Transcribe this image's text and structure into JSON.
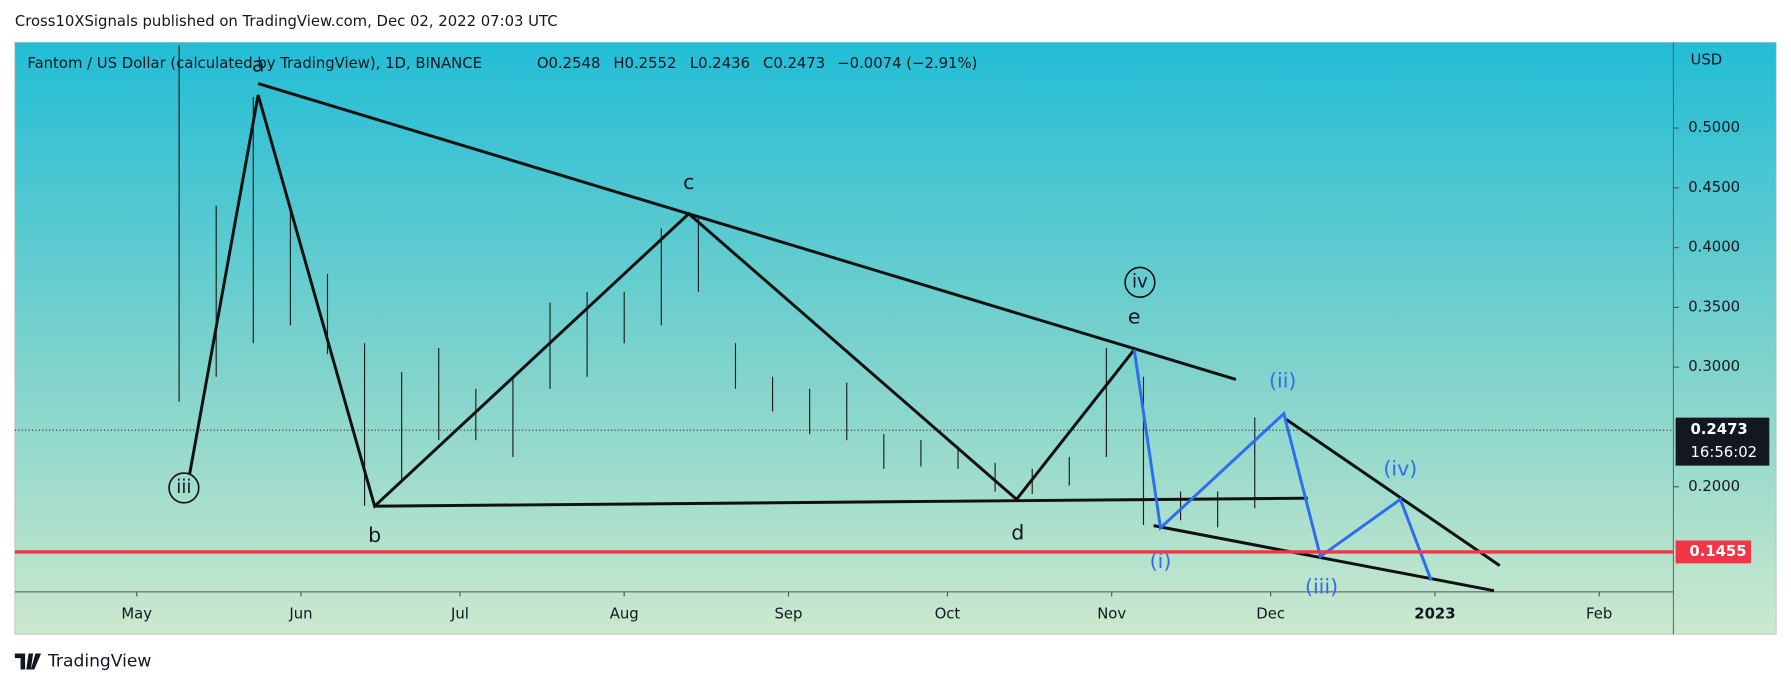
{
  "header": {
    "publisher": "Cross10XSignals published on TradingView.com, Dec 02, 2022 07:03 UTC"
  },
  "footer": {
    "logo": "TradingView"
  },
  "chart_data": {
    "type": "range",
    "title": "Fantom / US Dollar (calculated by TradingView), 1D, BINANCE",
    "ohlc": {
      "open": "O0.2548",
      "high": "H0.2552",
      "low": "L0.2436",
      "close": "C0.2473",
      "change": "−0.0074 (−2.91%)"
    },
    "currency": "USD",
    "x": [
      "2022-05-09",
      "2022-05-16",
      "2022-05-23",
      "2022-05-30",
      "2022-06-06",
      "2022-06-13",
      "2022-06-20",
      "2022-06-27",
      "2022-07-04",
      "2022-07-11",
      "2022-07-18",
      "2022-07-25",
      "2022-08-01",
      "2022-08-08",
      "2022-08-15",
      "2022-08-22",
      "2022-08-29",
      "2022-09-05",
      "2022-09-12",
      "2022-09-19",
      "2022-09-26",
      "2022-10-03",
      "2022-10-10",
      "2022-10-17",
      "2022-10-24",
      "2022-10-31",
      "2022-11-07",
      "2022-11-14",
      "2022-11-21",
      "2022-11-28"
    ],
    "high": [
      0.569,
      0.435,
      0.526,
      0.43,
      0.378,
      0.32,
      0.296,
      0.316,
      0.282,
      0.292,
      0.354,
      0.363,
      0.363,
      0.416,
      0.425,
      0.32,
      0.292,
      0.282,
      0.287,
      0.244,
      0.239,
      0.234,
      0.22,
      0.215,
      0.225,
      0.316,
      0.292,
      0.196,
      0.196,
      0.258
    ],
    "low": [
      0.271,
      0.292,
      0.32,
      0.335,
      0.311,
      0.184,
      0.206,
      0.239,
      0.239,
      0.225,
      0.282,
      0.292,
      0.32,
      0.335,
      0.363,
      0.282,
      0.263,
      0.244,
      0.239,
      0.215,
      0.217,
      0.215,
      0.196,
      0.194,
      0.201,
      0.225,
      0.168,
      0.172,
      0.166,
      0.182
    ],
    "color": "#1b1b1b",
    "xlim": [
      "2022-04-08",
      "2023-02-15"
    ],
    "xticks": [
      {
        "value": "2022-05-01",
        "label": "May"
      },
      {
        "value": "2022-06-01",
        "label": "Jun"
      },
      {
        "value": "2022-07-01",
        "label": "Jul"
      },
      {
        "value": "2022-08-01",
        "label": "Aug"
      },
      {
        "value": "2022-09-01",
        "label": "Sep"
      },
      {
        "value": "2022-10-01",
        "label": "Oct"
      },
      {
        "value": "2022-11-01",
        "label": "Nov"
      },
      {
        "value": "2022-12-01",
        "label": "Dec"
      },
      {
        "value": "2023-01-01",
        "label": "2023"
      },
      {
        "value": "2023-02-01",
        "label": "Feb"
      }
    ],
    "ylim": [
      0.1121,
      0.5716
    ],
    "yticks": [
      {
        "value": 0.2,
        "label": "0.2000"
      },
      {
        "value": 0.3,
        "label": "0.3000"
      },
      {
        "value": 0.35,
        "label": "0.3500"
      },
      {
        "value": 0.4,
        "label": "0.4000"
      },
      {
        "value": 0.45,
        "label": "0.4500"
      },
      {
        "value": 0.5,
        "label": "0.5000"
      }
    ],
    "last_price": {
      "value": 0.2473,
      "label": "0.2473",
      "countdown": "16:56:02"
    },
    "support": {
      "value": 0.1455,
      "label": "0.1455",
      "color": "#f23645"
    },
    "annotations": [
      "a",
      "iii",
      "b",
      "c",
      "d",
      "iv",
      "e",
      "(i)",
      "(ii)",
      "(iii)",
      "(iv)"
    ]
  }
}
